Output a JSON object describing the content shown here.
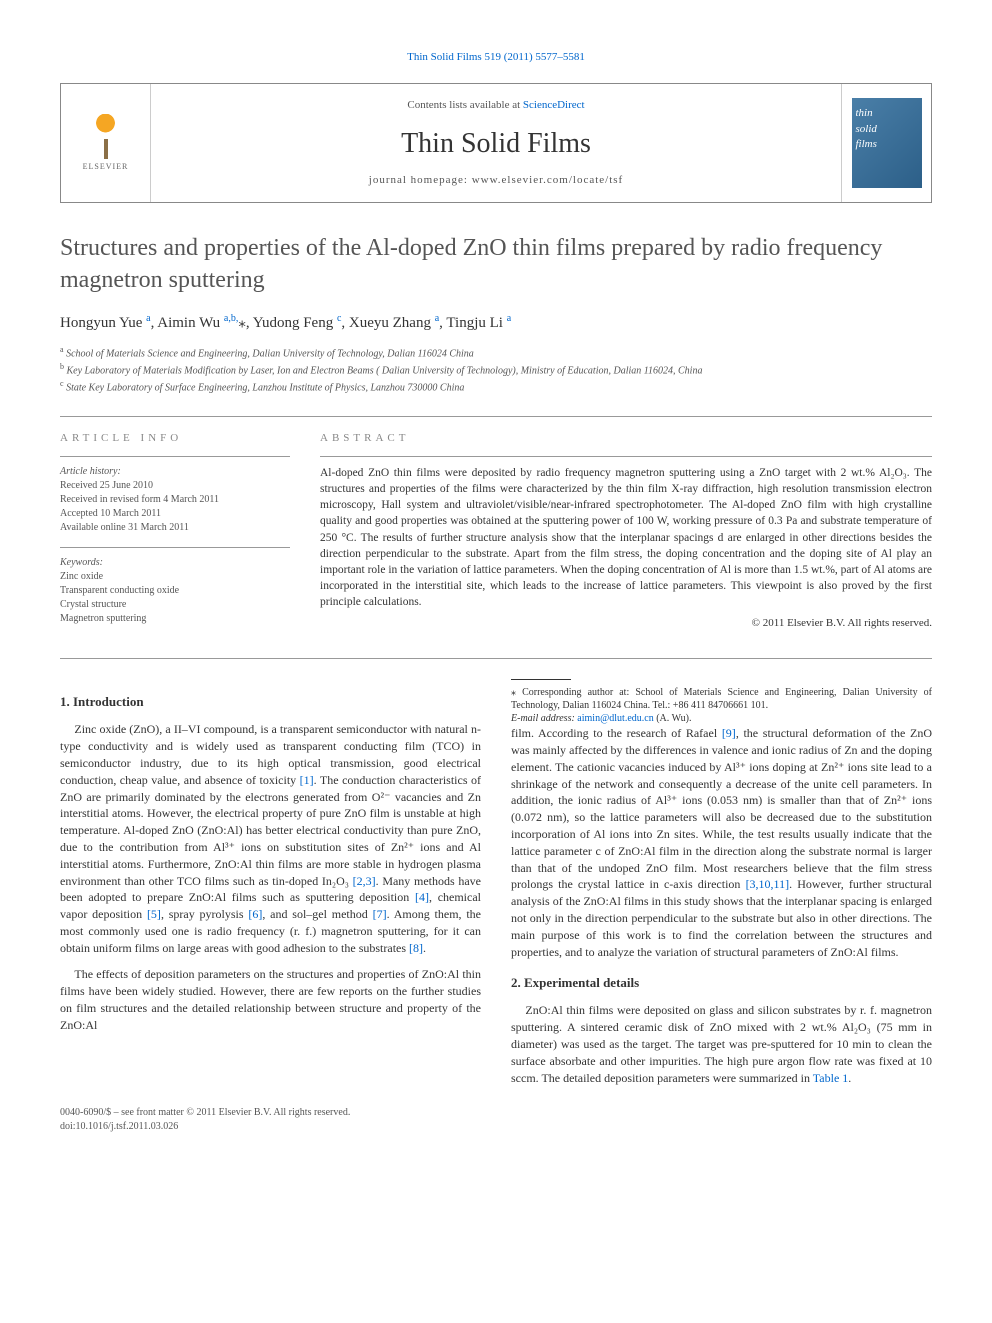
{
  "header": {
    "citation": "Thin Solid Films 519 (2011) 5577–5581",
    "contents_prefix": "Contents lists available at ",
    "contents_link": "ScienceDirect",
    "journal_name": "Thin Solid Films",
    "homepage_label": "journal homepage: ",
    "homepage_url": "www.elsevier.com/locate/tsf",
    "elsevier_label": "ELSEVIER",
    "cover_line1": "thin",
    "cover_line2": "solid",
    "cover_line3": "films"
  },
  "title": "Structures and properties of the Al-doped ZnO thin films prepared by radio frequency magnetron sputtering",
  "authors": [
    {
      "name": "Hongyun Yue",
      "affil": "a"
    },
    {
      "name": "Aimin Wu",
      "affil": "a,b,",
      "star": true
    },
    {
      "name": "Yudong Feng",
      "affil": "c"
    },
    {
      "name": "Xueyu Zhang",
      "affil": "a"
    },
    {
      "name": "Tingju Li",
      "affil": "a"
    }
  ],
  "affiliations": {
    "a": "School of Materials Science and Engineering, Dalian University of Technology, Dalian 116024 China",
    "b": "Key Laboratory of Materials Modification by Laser, Ion and Electron Beams ( Dalian University of Technology), Ministry of Education, Dalian 116024, China",
    "c": "State Key Laboratory of Surface Engineering, Lanzhou Institute of Physics, Lanzhou 730000 China"
  },
  "info": {
    "section_label": "ARTICLE INFO",
    "history_label": "Article history:",
    "history": [
      "Received 25 June 2010",
      "Received in revised form 4 March 2011",
      "Accepted 10 March 2011",
      "Available online 31 March 2011"
    ],
    "keywords_label": "Keywords:",
    "keywords": [
      "Zinc oxide",
      "Transparent conducting oxide",
      "Crystal structure",
      "Magnetron sputtering"
    ]
  },
  "abstract": {
    "section_label": "ABSTRACT",
    "text": "Al-doped ZnO thin films were deposited by radio frequency magnetron sputtering using a ZnO target with 2 wt.% Al₂O₃. The structures and properties of the films were characterized by the thin film X-ray diffraction, high resolution transmission electron microscopy, Hall system and ultraviolet/visible/near-infrared spectrophotometer. The Al-doped ZnO film with high crystalline quality and good properties was obtained at the sputtering power of 100 W, working pressure of 0.3 Pa and substrate temperature of 250 °C. The results of further structure analysis show that the interplanar spacings d are enlarged in other directions besides the direction perpendicular to the substrate. Apart from the film stress, the doping concentration and the doping site of Al play an important role in the variation of lattice parameters. When the doping concentration of Al is more than 1.5 wt.%, part of Al atoms are incorporated in the interstitial site, which leads to the increase of lattice parameters. This viewpoint is also proved by the first principle calculations.",
    "copyright": "© 2011 Elsevier B.V. All rights reserved."
  },
  "sections": {
    "intro_heading": "1. Introduction",
    "intro_p1": "Zinc oxide (ZnO), a II–VI compound, is a transparent semiconductor with natural n-type conductivity and is widely used as transparent conducting film (TCO) in semiconductor industry, due to its high optical transmission, good electrical conduction, cheap value, and absence of toxicity [1]. The conduction characteristics of ZnO are primarily dominated by the electrons generated from O²⁻ vacancies and Zn interstitial atoms. However, the electrical property of pure ZnO film is unstable at high temperature. Al-doped ZnO (ZnO:Al) has better electrical conductivity than pure ZnO, due to the contribution from Al³⁺ ions on substitution sites of Zn²⁺ ions and Al interstitial atoms. Furthermore, ZnO:Al thin films are more stable in hydrogen plasma environment than other TCO films such as tin-doped In₂O₃ [2,3]. Many methods have been adopted to prepare ZnO:Al films such as sputtering deposition [4], chemical vapor deposition [5], spray pyrolysis [6], and sol–gel method [7]. Among them, the most commonly used one is radio frequency (r. f.) magnetron sputtering, for it can obtain uniform films on large areas with good adhesion to the substrates [8].",
    "intro_p2": "The effects of deposition parameters on the structures and properties of ZnO:Al thin films have been widely studied. However, there are few reports on the further studies on film structures and the detailed relationship between structure and property of the ZnO:Al",
    "intro_p3": "film. According to the research of Rafael [9], the structural deformation of the ZnO was mainly affected by the differences in valence and ionic radius of Zn and the doping element. The cationic vacancies induced by Al³⁺ ions doping at Zn²⁺ ions site lead to a shrinkage of the network and consequently a decrease of the unite cell parameters. In addition, the ionic radius of Al³⁺ ions (0.053 nm) is smaller than that of Zn²⁺ ions (0.072 nm), so the lattice parameters will also be decreased due to the substitution incorporation of Al ions into Zn sites. While, the test results usually indicate that the lattice parameter c of ZnO:Al film in the direction along the substrate normal is larger than that of the undoped ZnO film. Most researchers believe that the film stress prolongs the crystal lattice in c-axis direction [3,10,11]. However, further structural analysis of the ZnO:Al films in this study shows that the interplanar spacing is enlarged not only in the direction perpendicular to the substrate but also in other directions. The main purpose of this work is to find the correlation between the structures and properties, and to analyze the variation of structural parameters of ZnO:Al films.",
    "exp_heading": "2. Experimental details",
    "exp_p1": "ZnO:Al thin films were deposited on glass and silicon substrates by r. f. magnetron sputtering. A sintered ceramic disk of ZnO mixed with 2 wt.% Al₂O₃ (75 mm in diameter) was used as the target. The target was pre-sputtered for 10 min to clean the surface absorbate and other impurities. The high pure argon flow rate was fixed at 10 sccm. The detailed deposition parameters were summarized in Table 1."
  },
  "footnotes": {
    "corresponding": "⁎ Corresponding author at: School of Materials Science and Engineering, Dalian University of Technology, Dalian 116024 China. Tel.: +86 411 84706661 101.",
    "email_label": "E-mail address: ",
    "email": "aimin@dlut.edu.cn",
    "email_suffix": " (A. Wu)."
  },
  "footer": {
    "issn": "0040-6090/$ – see front matter © 2011 Elsevier B.V. All rights reserved.",
    "doi": "doi:10.1016/j.tsf.2011.03.026"
  },
  "colors": {
    "link": "#0066cc",
    "text": "#333333",
    "muted": "#555555",
    "border": "#999999",
    "cover_bg": "#2c5f88"
  }
}
